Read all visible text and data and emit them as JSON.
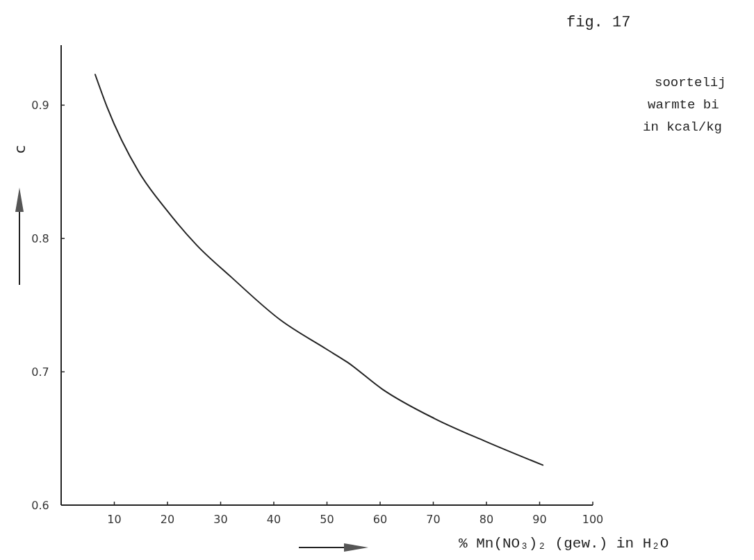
{
  "chart_data": {
    "type": "line",
    "title": "fig. 17",
    "annotations": [
      "soortelij",
      "warmte bi",
      "in kcal/kg"
    ],
    "xlabel": "% Mn(NO₃)₂ (gew.) in H₂O",
    "ylabel": "c",
    "series": [
      {
        "color": "#222222",
        "x": [
          6.4,
          8.6,
          14.6,
          19.9,
          25.5,
          32.0,
          41.2,
          49.9,
          53.9,
          60.4,
          70.2,
          79.7,
          90.6
        ],
        "values": [
          0.923,
          0.899,
          0.85,
          0.821,
          0.795,
          0.771,
          0.739,
          0.717,
          0.707,
          0.687,
          0.665,
          0.648,
          0.63
        ]
      }
    ],
    "xlim": [
      0,
      100
    ],
    "xticks": [
      {
        "value": 0,
        "label": null
      },
      10,
      20,
      30,
      40,
      50,
      60,
      70,
      80,
      90,
      100
    ],
    "ylim": [
      0.6,
      0.945
    ],
    "yticks": [
      0.6,
      0.7,
      0.8,
      0.9
    ],
    "grid": false,
    "marker": "none",
    "line_style": "solid"
  }
}
